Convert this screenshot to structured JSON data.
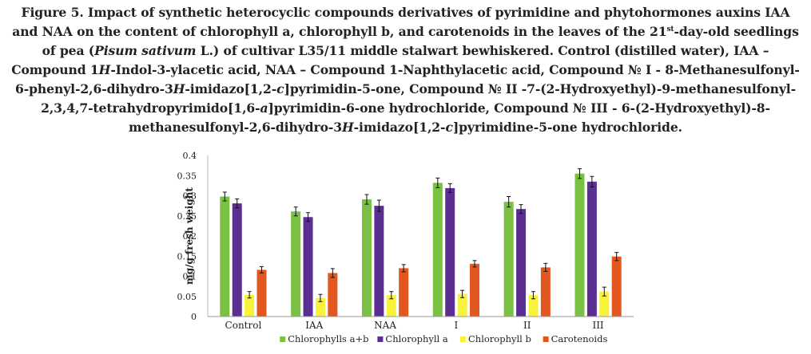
{
  "figure": {
    "label": "Figure 5.",
    "text1": " Impact of synthetic heterocyclic compounds derivatives of pyrimidine and phytohormones auxins IAA and NAA on the content of chlorophyll a, chlorophyll b, and carotenoids in the leaves of the 21",
    "sup": "st",
    "text2": "-day-old seedlings of pea (",
    "italic_species": "Pisum sativum",
    "text3": " L.) of cultivar L35/11 middle stalwart bewhiskered. Control (distilled water), IAA – Compound 1",
    "italic_h1": "H",
    "text4": "-Indol-3-ylacetic acid, NAA – Compound 1-Naphthylacetic acid, Compound № I - 8-Methanesulfonyl-6-phenyl-2,6-dihydro-3",
    "italic_h2": "H",
    "text5": "-imidazo[1,2-",
    "italic_c1": "c",
    "text6": "]pyrimidin-5-one, Compound № II -7-(2-Hydroxyethyl)-9-methanesulfonyl-2,3,4,7-tetrahydropyrimido[1,6-",
    "italic_a": "a",
    "text7": "]pyrimidin-6-one hydrochloride, Compound № III - 6-(2-Hydroxyethyl)-8-methanesulfonyl-2,6-dihydro-3",
    "italic_h3": "H",
    "text8": "-imidazo[1,2-",
    "italic_c2": "c",
    "text9": "]pyrimidine-5-one hydrochloride."
  },
  "chart_data": {
    "type": "bar",
    "categories": [
      "Control",
      "IAA",
      "NAA",
      "I",
      "II",
      "III"
    ],
    "series": [
      {
        "name": "Chlorophylls a+b",
        "color": "#7ac143",
        "values": [
          0.298,
          0.261,
          0.291,
          0.332,
          0.285,
          0.355
        ],
        "errors": [
          0.011,
          0.011,
          0.012,
          0.012,
          0.013,
          0.012
        ]
      },
      {
        "name": "Chlorophyll a",
        "color": "#5b2e91",
        "values": [
          0.281,
          0.247,
          0.275,
          0.319,
          0.267,
          0.335
        ],
        "errors": [
          0.011,
          0.011,
          0.014,
          0.011,
          0.011,
          0.013
        ]
      },
      {
        "name": "Chlorophyll b",
        "color": "#f8f23b",
        "values": [
          0.054,
          0.046,
          0.053,
          0.056,
          0.053,
          0.062
        ],
        "errors": [
          0.008,
          0.009,
          0.009,
          0.009,
          0.009,
          0.011
        ]
      },
      {
        "name": "Carotenoids",
        "color": "#e2571e",
        "values": [
          0.116,
          0.108,
          0.12,
          0.131,
          0.122,
          0.149
        ],
        "errors": [
          0.008,
          0.011,
          0.009,
          0.008,
          0.01,
          0.01
        ]
      }
    ],
    "ylabel": "mg/g fresh weight",
    "xlabel": "",
    "ylim": [
      0,
      0.4
    ],
    "yticks": [
      "0",
      "0.05",
      "0.1",
      "0.15",
      "0.2",
      "0.25",
      "0.3",
      "0.35",
      "0.4"
    ],
    "grid": false,
    "legend": "bottom"
  }
}
